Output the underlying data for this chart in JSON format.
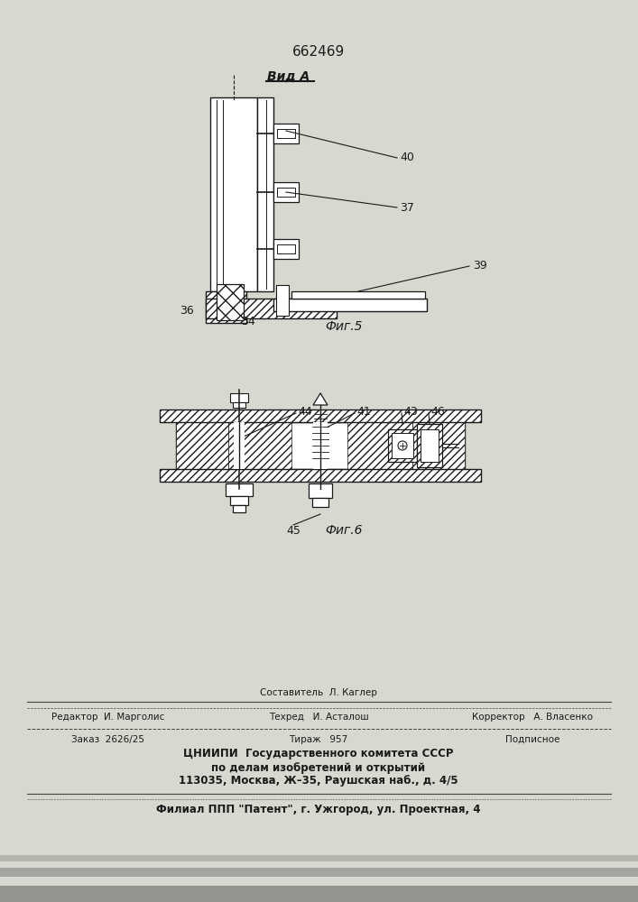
{
  "patent_number": "662469",
  "view_label": "Вид А",
  "fig5_label": "Фиг.5",
  "fig6_label": "Фиг.6",
  "bg_color": "#d8d8d0",
  "line_color": "#1a1a1a",
  "footer_col1": "Редактор  И. Марголис",
  "footer_col2_line1": "Составитель  Л. Каглер",
  "footer_col2_line2": "Техред   И. Асталош",
  "footer_col3": "Корректор   А. Власенко",
  "footer_order": "Заказ  2626/25",
  "footer_tirazh": "Тираж   957",
  "footer_podp": "Подписное",
  "footer_tsniip1": "ЦНИИПИ  Государственного комитета СССР",
  "footer_tsniip2": "по делам изобретений и открытий",
  "footer_tsniip3": "113035, Москва, Ж–35, Раушская наб., д. 4/5",
  "footer_filial": "Филиал ППП \"Патент\", г. Ужгород, ул. Проектная, 4",
  "noise_bands": [
    [
      0.0,
      0.982,
      1.0,
      0.018,
      0.6
    ],
    [
      0.0,
      0.962,
      1.0,
      0.01,
      0.45
    ],
    [
      0.0,
      0.948,
      1.0,
      0.007,
      0.3
    ]
  ]
}
